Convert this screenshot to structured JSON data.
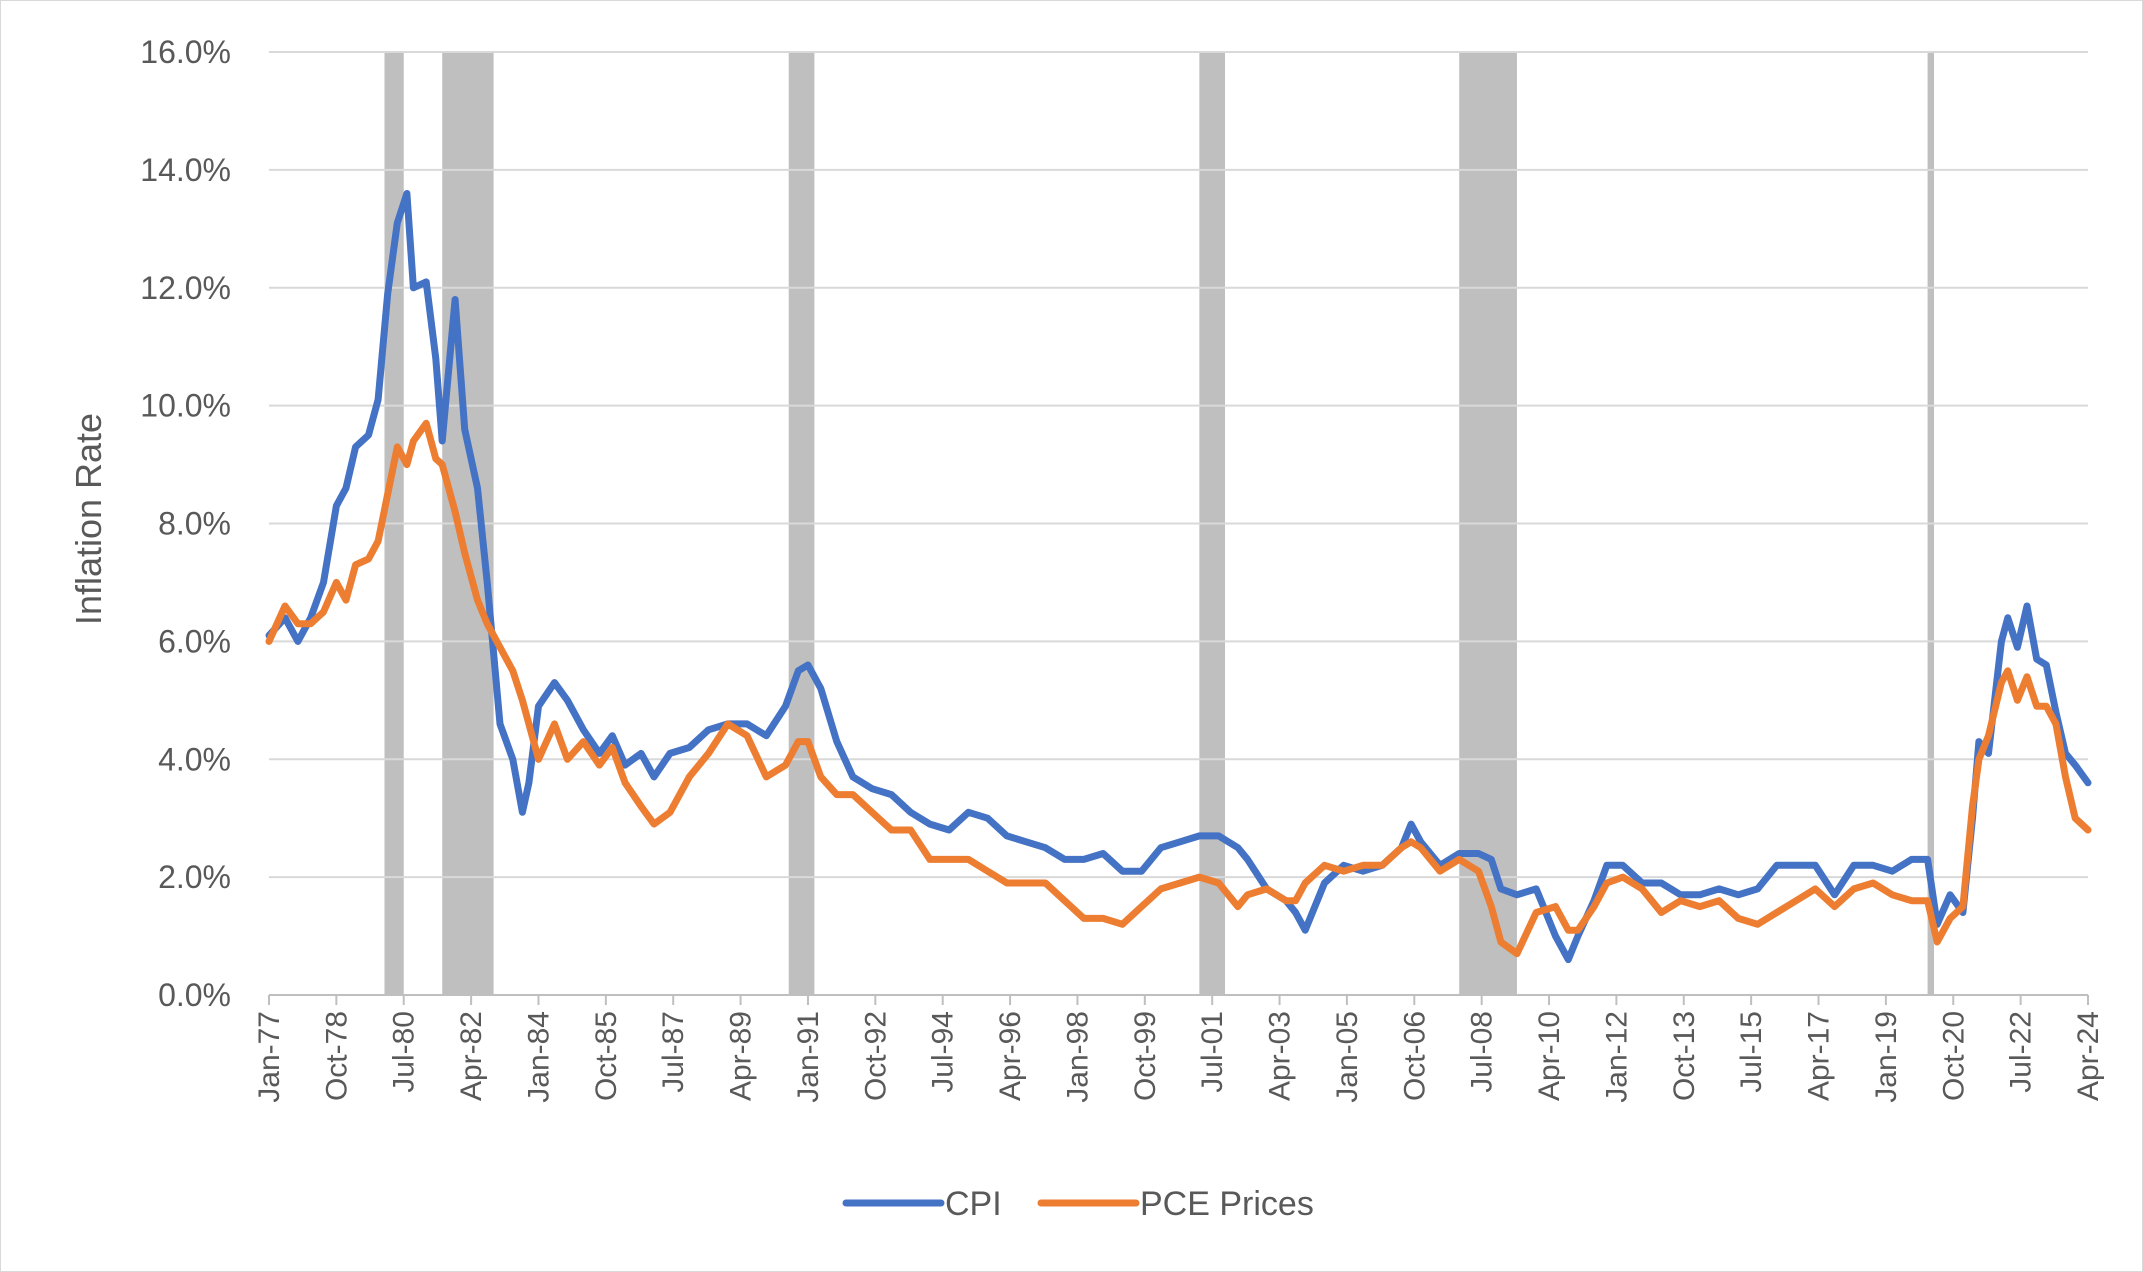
{
  "chart_data": {
    "type": "line",
    "title": "",
    "xlabel": "",
    "ylabel": "Inflation Rate",
    "ylim": [
      0,
      16
    ],
    "xlim": [
      "1977-01",
      "2024-04"
    ],
    "y_ticks": [
      "0.0%",
      "2.0%",
      "4.0%",
      "6.0%",
      "8.0%",
      "10.0%",
      "12.0%",
      "14.0%",
      "16.0%"
    ],
    "x_tick_labels": [
      "Jan-77",
      "Oct-78",
      "Jul-80",
      "Apr-82",
      "Jan-84",
      "Oct-85",
      "Jul-87",
      "Apr-89",
      "Jan-91",
      "Oct-92",
      "Jul-94",
      "Apr-96",
      "Jan-98",
      "Oct-99",
      "Jul-01",
      "Apr-03",
      "Jan-05",
      "Oct-06",
      "Jul-08",
      "Apr-10",
      "Jan-12",
      "Oct-13",
      "Jul-15",
      "Apr-17",
      "Jan-19",
      "Oct-20",
      "Jul-22",
      "Apr-24"
    ],
    "grid": true,
    "legend_position": "bottom-center",
    "recession_shading": [
      {
        "start": "1980-01",
        "end": "1980-07"
      },
      {
        "start": "1981-07",
        "end": "1982-11"
      },
      {
        "start": "1990-07",
        "end": "1991-03"
      },
      {
        "start": "2001-03",
        "end": "2001-11"
      },
      {
        "start": "2007-12",
        "end": "2009-06"
      },
      {
        "start": "2020-02",
        "end": "2020-04"
      }
    ],
    "series": [
      {
        "name": "CPI",
        "color": "#4472C4",
        "points": [
          [
            "1977-01",
            6.1
          ],
          [
            "1977-06",
            6.4
          ],
          [
            "1977-10",
            6.0
          ],
          [
            "1978-02",
            6.4
          ],
          [
            "1978-06",
            7.0
          ],
          [
            "1978-10",
            8.3
          ],
          [
            "1979-01",
            8.6
          ],
          [
            "1979-04",
            9.3
          ],
          [
            "1979-08",
            9.5
          ],
          [
            "1979-11",
            10.1
          ],
          [
            "1980-02",
            11.9
          ],
          [
            "1980-05",
            13.1
          ],
          [
            "1980-08",
            13.6
          ],
          [
            "1980-10",
            12.0
          ],
          [
            "1981-02",
            12.1
          ],
          [
            "1981-05",
            10.8
          ],
          [
            "1981-07",
            9.4
          ],
          [
            "1981-11",
            11.8
          ],
          [
            "1982-02",
            9.6
          ],
          [
            "1982-06",
            8.6
          ],
          [
            "1982-09",
            7.0
          ],
          [
            "1983-01",
            4.6
          ],
          [
            "1983-05",
            4.0
          ],
          [
            "1983-08",
            3.1
          ],
          [
            "1983-10",
            3.6
          ],
          [
            "1984-01",
            4.9
          ],
          [
            "1984-06",
            5.3
          ],
          [
            "1984-10",
            5.0
          ],
          [
            "1985-03",
            4.5
          ],
          [
            "1985-08",
            4.1
          ],
          [
            "1985-12",
            4.4
          ],
          [
            "1986-04",
            3.9
          ],
          [
            "1986-09",
            4.1
          ],
          [
            "1987-01",
            3.7
          ],
          [
            "1987-06",
            4.1
          ],
          [
            "1987-12",
            4.2
          ],
          [
            "1988-06",
            4.5
          ],
          [
            "1988-12",
            4.6
          ],
          [
            "1989-06",
            4.6
          ],
          [
            "1989-12",
            4.4
          ],
          [
            "1990-06",
            4.9
          ],
          [
            "1990-10",
            5.5
          ],
          [
            "1991-01",
            5.6
          ],
          [
            "1991-05",
            5.2
          ],
          [
            "1991-10",
            4.3
          ],
          [
            "1992-03",
            3.7
          ],
          [
            "1992-09",
            3.5
          ],
          [
            "1993-03",
            3.4
          ],
          [
            "1993-09",
            3.1
          ],
          [
            "1994-03",
            2.9
          ],
          [
            "1994-09",
            2.8
          ],
          [
            "1995-03",
            3.1
          ],
          [
            "1995-09",
            3.0
          ],
          [
            "1996-03",
            2.7
          ],
          [
            "1996-09",
            2.6
          ],
          [
            "1997-03",
            2.5
          ],
          [
            "1997-09",
            2.3
          ],
          [
            "1998-03",
            2.3
          ],
          [
            "1998-09",
            2.4
          ],
          [
            "1999-03",
            2.1
          ],
          [
            "1999-09",
            2.1
          ],
          [
            "2000-03",
            2.5
          ],
          [
            "2000-09",
            2.6
          ],
          [
            "2001-03",
            2.7
          ],
          [
            "2001-09",
            2.7
          ],
          [
            "2002-03",
            2.5
          ],
          [
            "2002-06",
            2.3
          ],
          [
            "2002-12",
            1.8
          ],
          [
            "2003-06",
            1.6
          ],
          [
            "2003-09",
            1.4
          ],
          [
            "2003-12",
            1.1
          ],
          [
            "2004-06",
            1.9
          ],
          [
            "2004-12",
            2.2
          ],
          [
            "2005-06",
            2.1
          ],
          [
            "2005-12",
            2.2
          ],
          [
            "2006-06",
            2.5
          ],
          [
            "2006-09",
            2.9
          ],
          [
            "2006-12",
            2.6
          ],
          [
            "2007-06",
            2.2
          ],
          [
            "2007-12",
            2.4
          ],
          [
            "2008-06",
            2.4
          ],
          [
            "2008-10",
            2.3
          ],
          [
            "2009-01",
            1.8
          ],
          [
            "2009-06",
            1.7
          ],
          [
            "2009-12",
            1.8
          ],
          [
            "2010-06",
            1.0
          ],
          [
            "2010-10",
            0.6
          ],
          [
            "2011-01",
            1.0
          ],
          [
            "2011-06",
            1.6
          ],
          [
            "2011-10",
            2.2
          ],
          [
            "2012-03",
            2.2
          ],
          [
            "2012-09",
            1.9
          ],
          [
            "2013-03",
            1.9
          ],
          [
            "2013-09",
            1.7
          ],
          [
            "2014-03",
            1.7
          ],
          [
            "2014-09",
            1.8
          ],
          [
            "2015-03",
            1.7
          ],
          [
            "2015-09",
            1.8
          ],
          [
            "2016-03",
            2.2
          ],
          [
            "2016-09",
            2.2
          ],
          [
            "2017-03",
            2.2
          ],
          [
            "2017-09",
            1.7
          ],
          [
            "2018-03",
            2.2
          ],
          [
            "2018-09",
            2.2
          ],
          [
            "2019-03",
            2.1
          ],
          [
            "2019-09",
            2.3
          ],
          [
            "2020-02",
            2.3
          ],
          [
            "2020-05",
            1.2
          ],
          [
            "2020-09",
            1.7
          ],
          [
            "2021-01",
            1.4
          ],
          [
            "2021-04",
            3.0
          ],
          [
            "2021-06",
            4.3
          ],
          [
            "2021-09",
            4.1
          ],
          [
            "2022-01",
            6.0
          ],
          [
            "2022-03",
            6.4
          ],
          [
            "2022-06",
            5.9
          ],
          [
            "2022-09",
            6.6
          ],
          [
            "2022-12",
            5.7
          ],
          [
            "2023-03",
            5.6
          ],
          [
            "2023-06",
            4.8
          ],
          [
            "2023-09",
            4.1
          ],
          [
            "2023-12",
            3.9
          ],
          [
            "2024-04",
            3.6
          ]
        ]
      },
      {
        "name": "PCE Prices",
        "color": "#ED7D31",
        "points": [
          [
            "1977-01",
            6.0
          ],
          [
            "1977-06",
            6.6
          ],
          [
            "1977-10",
            6.3
          ],
          [
            "1978-02",
            6.3
          ],
          [
            "1978-06",
            6.5
          ],
          [
            "1978-10",
            7.0
          ],
          [
            "1979-01",
            6.7
          ],
          [
            "1979-04",
            7.3
          ],
          [
            "1979-08",
            7.4
          ],
          [
            "1979-11",
            7.7
          ],
          [
            "1980-02",
            8.5
          ],
          [
            "1980-05",
            9.3
          ],
          [
            "1980-08",
            9.0
          ],
          [
            "1980-10",
            9.4
          ],
          [
            "1981-02",
            9.7
          ],
          [
            "1981-05",
            9.1
          ],
          [
            "1981-07",
            9.0
          ],
          [
            "1981-11",
            8.2
          ],
          [
            "1982-02",
            7.5
          ],
          [
            "1982-06",
            6.7
          ],
          [
            "1982-09",
            6.3
          ],
          [
            "1983-01",
            5.9
          ],
          [
            "1983-05",
            5.5
          ],
          [
            "1983-08",
            5.0
          ],
          [
            "1983-10",
            4.6
          ],
          [
            "1984-01",
            4.0
          ],
          [
            "1984-06",
            4.6
          ],
          [
            "1984-10",
            4.0
          ],
          [
            "1985-03",
            4.3
          ],
          [
            "1985-08",
            3.9
          ],
          [
            "1985-12",
            4.2
          ],
          [
            "1986-04",
            3.6
          ],
          [
            "1986-09",
            3.2
          ],
          [
            "1987-01",
            2.9
          ],
          [
            "1987-06",
            3.1
          ],
          [
            "1987-12",
            3.7
          ],
          [
            "1988-06",
            4.1
          ],
          [
            "1988-12",
            4.6
          ],
          [
            "1989-06",
            4.4
          ],
          [
            "1989-12",
            3.7
          ],
          [
            "1990-06",
            3.9
          ],
          [
            "1990-10",
            4.3
          ],
          [
            "1991-01",
            4.3
          ],
          [
            "1991-05",
            3.7
          ],
          [
            "1991-10",
            3.4
          ],
          [
            "1992-03",
            3.4
          ],
          [
            "1992-09",
            3.1
          ],
          [
            "1993-03",
            2.8
          ],
          [
            "1993-09",
            2.8
          ],
          [
            "1994-03",
            2.3
          ],
          [
            "1994-09",
            2.3
          ],
          [
            "1995-03",
            2.3
          ],
          [
            "1995-09",
            2.1
          ],
          [
            "1996-03",
            1.9
          ],
          [
            "1996-09",
            1.9
          ],
          [
            "1997-03",
            1.9
          ],
          [
            "1997-09",
            1.6
          ],
          [
            "1998-03",
            1.3
          ],
          [
            "1998-09",
            1.3
          ],
          [
            "1999-03",
            1.2
          ],
          [
            "1999-09",
            1.5
          ],
          [
            "2000-03",
            1.8
          ],
          [
            "2000-09",
            1.9
          ],
          [
            "2001-03",
            2.0
          ],
          [
            "2001-09",
            1.9
          ],
          [
            "2002-03",
            1.5
          ],
          [
            "2002-06",
            1.7
          ],
          [
            "2002-12",
            1.8
          ],
          [
            "2003-06",
            1.6
          ],
          [
            "2003-09",
            1.6
          ],
          [
            "2003-12",
            1.9
          ],
          [
            "2004-06",
            2.2
          ],
          [
            "2004-12",
            2.1
          ],
          [
            "2005-06",
            2.2
          ],
          [
            "2005-12",
            2.2
          ],
          [
            "2006-06",
            2.5
          ],
          [
            "2006-09",
            2.6
          ],
          [
            "2006-12",
            2.5
          ],
          [
            "2007-06",
            2.1
          ],
          [
            "2007-12",
            2.3
          ],
          [
            "2008-06",
            2.1
          ],
          [
            "2008-10",
            1.5
          ],
          [
            "2009-01",
            0.9
          ],
          [
            "2009-06",
            0.7
          ],
          [
            "2009-12",
            1.4
          ],
          [
            "2010-06",
            1.5
          ],
          [
            "2010-10",
            1.1
          ],
          [
            "2011-01",
            1.1
          ],
          [
            "2011-06",
            1.5
          ],
          [
            "2011-10",
            1.9
          ],
          [
            "2012-03",
            2.0
          ],
          [
            "2012-09",
            1.8
          ],
          [
            "2013-03",
            1.4
          ],
          [
            "2013-09",
            1.6
          ],
          [
            "2014-03",
            1.5
          ],
          [
            "2014-09",
            1.6
          ],
          [
            "2015-03",
            1.3
          ],
          [
            "2015-09",
            1.2
          ],
          [
            "2016-03",
            1.4
          ],
          [
            "2016-09",
            1.6
          ],
          [
            "2017-03",
            1.8
          ],
          [
            "2017-09",
            1.5
          ],
          [
            "2018-03",
            1.8
          ],
          [
            "2018-09",
            1.9
          ],
          [
            "2019-03",
            1.7
          ],
          [
            "2019-09",
            1.6
          ],
          [
            "2020-02",
            1.6
          ],
          [
            "2020-05",
            0.9
          ],
          [
            "2020-09",
            1.3
          ],
          [
            "2021-01",
            1.5
          ],
          [
            "2021-04",
            3.2
          ],
          [
            "2021-06",
            4.0
          ],
          [
            "2021-09",
            4.4
          ],
          [
            "2022-01",
            5.3
          ],
          [
            "2022-03",
            5.5
          ],
          [
            "2022-06",
            5.0
          ],
          [
            "2022-09",
            5.4
          ],
          [
            "2022-12",
            4.9
          ],
          [
            "2023-03",
            4.9
          ],
          [
            "2023-06",
            4.6
          ],
          [
            "2023-09",
            3.7
          ],
          [
            "2023-12",
            3.0
          ],
          [
            "2024-04",
            2.8
          ]
        ]
      }
    ]
  }
}
